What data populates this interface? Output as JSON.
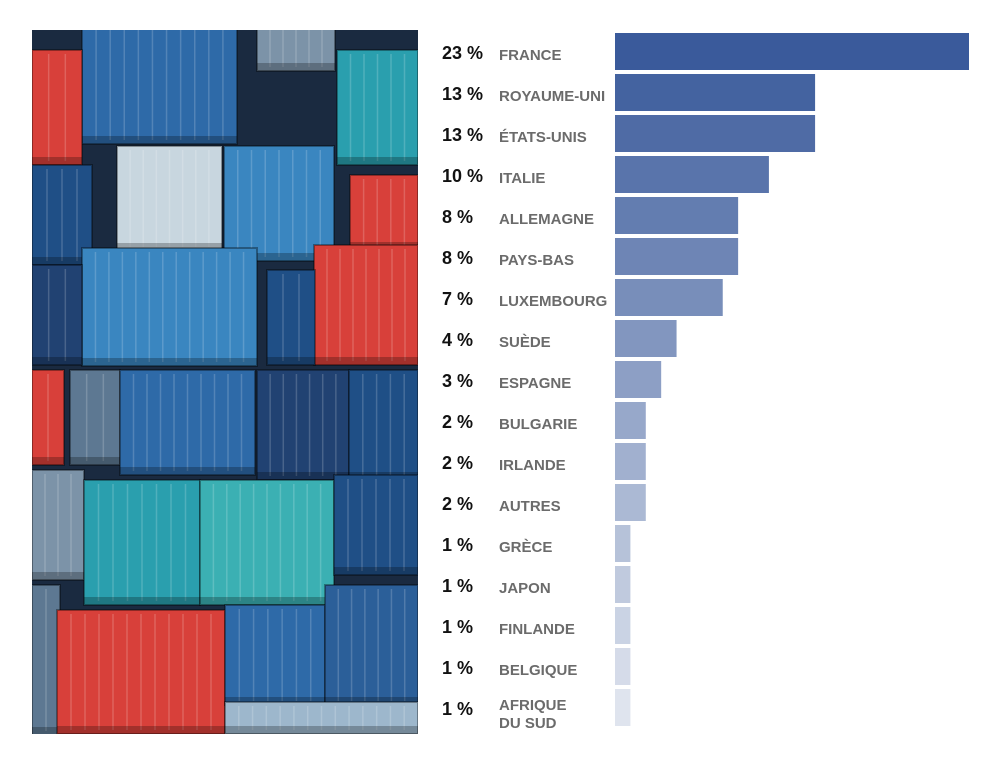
{
  "photo": {
    "description_icon": "shipping-containers-photo"
  },
  "chart_data": {
    "type": "bar",
    "orientation": "horizontal",
    "categories": [
      "FRANCE",
      "ROYAUME-UNI",
      "ÉTATS-UNIS",
      "ITALIE",
      "ALLEMAGNE",
      "PAYS-BAS",
      "LUXEMBOURG",
      "SUÈDE",
      "ESPAGNE",
      "BULGARIE",
      "IRLANDE",
      "AUTRES",
      "GRÈCE",
      "JAPON",
      "FINLANDE",
      "BELGIQUE",
      "AFRIQUE DU SUD"
    ],
    "values": [
      23,
      13,
      13,
      10,
      8,
      8,
      7,
      4,
      3,
      2,
      2,
      2,
      1,
      1,
      1,
      1,
      1
    ],
    "value_labels": [
      "23 %",
      "13 %",
      "13 %",
      "10 %",
      "8 %",
      "8 %",
      "7 %",
      "4 %",
      "3 %",
      "2 %",
      "2 %",
      "2 %",
      "1 %",
      "1 %",
      "1 %",
      "1 %",
      "1 %"
    ],
    "label_lines": [
      [
        "FRANCE"
      ],
      [
        "ROYAUME-UNI"
      ],
      [
        "ÉTATS-UNIS"
      ],
      [
        "ITALIE"
      ],
      [
        "ALLEMAGNE"
      ],
      [
        "PAYS-BAS"
      ],
      [
        "LUXEMBOURG"
      ],
      [
        "SUÈDE"
      ],
      [
        "ESPAGNE"
      ],
      [
        "BULGARIE"
      ],
      [
        "IRLANDE"
      ],
      [
        "AUTRES"
      ],
      [
        "GRÈCE"
      ],
      [
        "JAPON"
      ],
      [
        "FINLANDE"
      ],
      [
        "BELGIQUE"
      ],
      [
        "AFRIQUE",
        "DU SUD"
      ]
    ],
    "xlim": [
      0,
      23
    ],
    "bar_color_start": "#3a5a9b",
    "bar_color_end": "#dfe4ee",
    "grid": false,
    "legend": "none"
  }
}
